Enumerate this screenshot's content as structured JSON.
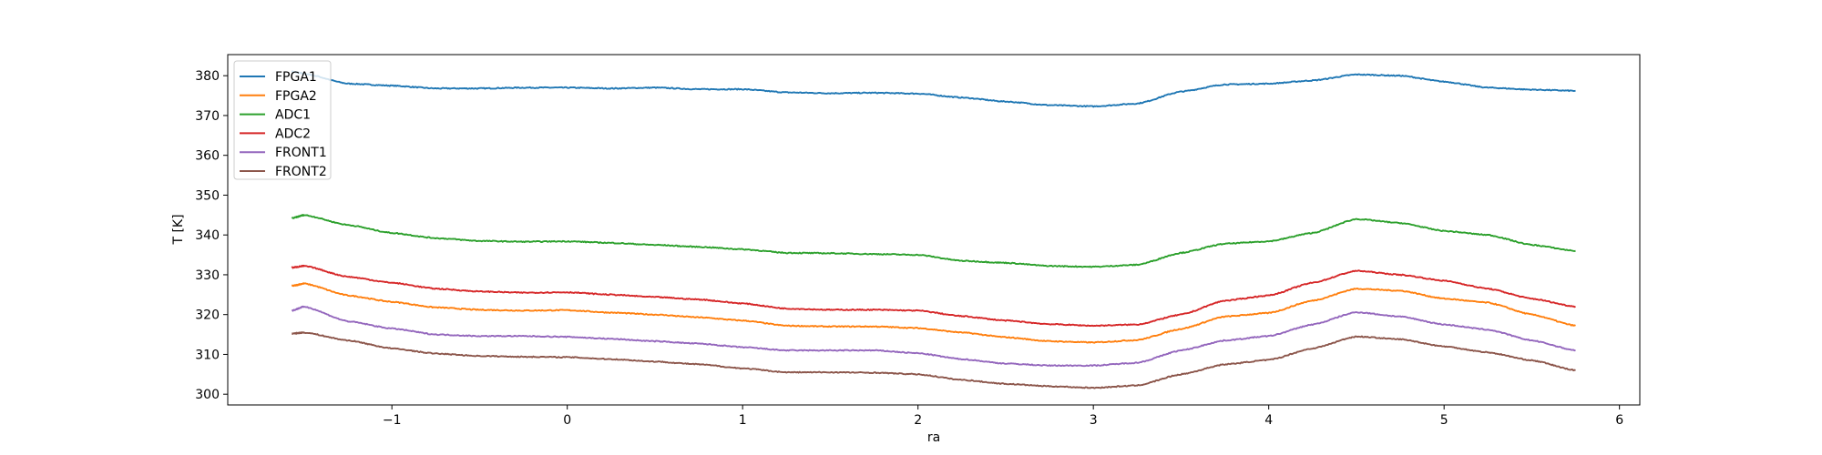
{
  "chart_data": {
    "type": "line",
    "title": "",
    "xlabel": "ra",
    "ylabel": "T [K]",
    "xlim": [
      -1.936,
      6.116
    ],
    "ylim": [
      297.3,
      385.3
    ],
    "xticks": [
      -1,
      0,
      1,
      2,
      3,
      4,
      5,
      6
    ],
    "yticks": [
      300,
      310,
      320,
      330,
      340,
      350,
      360,
      370,
      380
    ],
    "grid": false,
    "legend_position": "top-left",
    "x": [
      -1.57,
      -1.5,
      -1.25,
      -1,
      -0.75,
      -0.5,
      -0.25,
      0,
      0.25,
      0.5,
      0.75,
      1,
      1.25,
      1.5,
      1.75,
      2,
      2.25,
      2.5,
      2.75,
      3,
      3.25,
      3.5,
      3.75,
      4,
      4.25,
      4.5,
      4.75,
      5,
      5.25,
      5.5,
      5.75
    ],
    "series": [
      {
        "name": "FPGA1",
        "color": "#1f77b4",
        "values": [
          381,
          380.5,
          378,
          377.5,
          376.8,
          376.8,
          377,
          377,
          376.8,
          377,
          376.6,
          376.6,
          375.8,
          375.6,
          375.7,
          375.5,
          374.5,
          373.5,
          372.6,
          372.3,
          373,
          376,
          377.8,
          378,
          378.8,
          380.3,
          380,
          378.5,
          377,
          376.5,
          376.2
        ]
      },
      {
        "name": "FPGA2",
        "color": "#ff7f0e",
        "values": [
          327.2,
          327.8,
          324.8,
          323.2,
          321.8,
          321.2,
          321,
          321.1,
          320.5,
          320,
          319.3,
          318.5,
          317.2,
          317,
          317,
          316.6,
          315.5,
          314.3,
          313.3,
          313,
          313.6,
          316.4,
          319.5,
          320.4,
          323.5,
          326.5,
          326,
          324,
          323,
          320,
          317.2
        ]
      },
      {
        "name": "ADC1",
        "color": "#2ca02c",
        "values": [
          344.2,
          345,
          342.5,
          340.5,
          339.2,
          338.5,
          338.3,
          338.4,
          338,
          337.5,
          337,
          336.4,
          335.5,
          335.4,
          335.2,
          335,
          333.5,
          333,
          332.2,
          332,
          332.5,
          335.5,
          337.8,
          338.4,
          340.5,
          344,
          343,
          341,
          340,
          337.5,
          336
        ]
      },
      {
        "name": "ADC2",
        "color": "#d62728",
        "values": [
          331.8,
          332.2,
          329.5,
          328,
          326.5,
          325.8,
          325.5,
          325.6,
          325,
          324.4,
          323.8,
          322.8,
          321.5,
          321.2,
          321.2,
          321,
          319.6,
          318.5,
          317.6,
          317.2,
          317.5,
          320,
          323.5,
          324.8,
          328,
          331,
          330,
          328.5,
          326.5,
          324,
          322
        ]
      },
      {
        "name": "FRONT1",
        "color": "#9467bd",
        "values": [
          321,
          322,
          318.3,
          316.5,
          315,
          314.6,
          314.6,
          314.4,
          313.9,
          313.3,
          312.7,
          311.8,
          311,
          311,
          311,
          310.3,
          308.8,
          307.7,
          307.2,
          307.2,
          307.9,
          311,
          313.5,
          314.6,
          317.5,
          320.6,
          319.5,
          317.5,
          316.2,
          313.5,
          311
        ]
      },
      {
        "name": "FRONT2",
        "color": "#8c564b",
        "values": [
          315.2,
          315.5,
          313.5,
          311.5,
          310.2,
          309.6,
          309.4,
          309.3,
          308.8,
          308.2,
          307.5,
          306.5,
          305.5,
          305.5,
          305.4,
          305,
          303.6,
          302.6,
          302,
          301.6,
          302.2,
          305,
          307.5,
          308.6,
          311.5,
          314.5,
          313.8,
          312,
          310.5,
          308.5,
          306
        ]
      }
    ]
  }
}
